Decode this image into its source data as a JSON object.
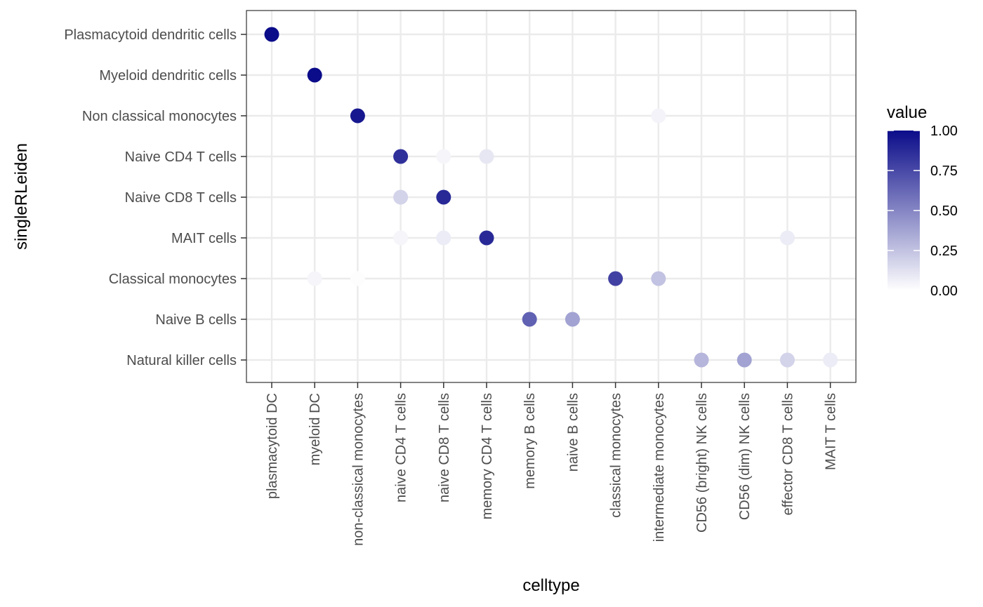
{
  "chart_data": {
    "type": "scatter",
    "xlabel": "celltype",
    "ylabel": "singleRLeiden",
    "x_categories": [
      "plasmacytoid DC",
      "myeloid DC",
      "non-classical monocytes",
      "naive CD4 T cells",
      "naive CD8 T cells",
      "memory CD4 T cells",
      "memory B cells",
      "naive B cells",
      "classical monocytes",
      "intermediate monocytes",
      "CD56 (bright) NK cells",
      "CD56 (dim) NK cells",
      "effector CD8 T cells",
      "MAIT T cells"
    ],
    "y_categories": [
      "Plasmacytoid dendritic cells",
      "Myeloid dendritic cells",
      "Non classical monocytes",
      "Naive CD4 T cells",
      "Naive CD8 T cells",
      "MAIT cells",
      "Classical monocytes",
      "Naive B cells",
      "Natural killer cells"
    ],
    "points": [
      {
        "x": "plasmacytoid DC",
        "y": "Plasmacytoid dendritic cells",
        "value": 1.0
      },
      {
        "x": "myeloid DC",
        "y": "Myeloid dendritic cells",
        "value": 1.0
      },
      {
        "x": "non-classical monocytes",
        "y": "Non classical monocytes",
        "value": 0.95
      },
      {
        "x": "intermediate monocytes",
        "y": "Non classical monocytes",
        "value": 0.05
      },
      {
        "x": "naive CD4 T cells",
        "y": "Naive CD4 T cells",
        "value": 0.85
      },
      {
        "x": "naive CD8 T cells",
        "y": "Naive CD4 T cells",
        "value": 0.04
      },
      {
        "x": "memory CD4 T cells",
        "y": "Naive CD4 T cells",
        "value": 0.1
      },
      {
        "x": "naive CD4 T cells",
        "y": "Naive CD8 T cells",
        "value": 0.18
      },
      {
        "x": "naive CD8 T cells",
        "y": "Naive CD8 T cells",
        "value": 0.88
      },
      {
        "x": "naive CD4 T cells",
        "y": "MAIT cells",
        "value": 0.04
      },
      {
        "x": "naive CD8 T cells",
        "y": "MAIT cells",
        "value": 0.08
      },
      {
        "x": "memory CD4 T cells",
        "y": "MAIT cells",
        "value": 0.88
      },
      {
        "x": "effector CD8 T cells",
        "y": "MAIT cells",
        "value": 0.08
      },
      {
        "x": "myeloid DC",
        "y": "Classical monocytes",
        "value": 0.04
      },
      {
        "x": "non-classical monocytes",
        "y": "Classical monocytes",
        "value": 0.01
      },
      {
        "x": "classical monocytes",
        "y": "Classical monocytes",
        "value": 0.78
      },
      {
        "x": "intermediate monocytes",
        "y": "Classical monocytes",
        "value": 0.25
      },
      {
        "x": "memory B cells",
        "y": "Naive B cells",
        "value": 0.65
      },
      {
        "x": "naive B cells",
        "y": "Naive B cells",
        "value": 0.38
      },
      {
        "x": "CD56 (bright) NK cells",
        "y": "Natural killer cells",
        "value": 0.3
      },
      {
        "x": "CD56 (dim) NK cells",
        "y": "Natural killer cells",
        "value": 0.38
      },
      {
        "x": "effector CD8 T cells",
        "y": "Natural killer cells",
        "value": 0.18
      },
      {
        "x": "MAIT T cells",
        "y": "Natural killer cells",
        "value": 0.08
      }
    ],
    "legend": {
      "title": "value",
      "position": "right",
      "ticks": [
        {
          "value": 0.0,
          "label": "0.00"
        },
        {
          "value": 0.25,
          "label": "0.25"
        },
        {
          "value": 0.5,
          "label": "0.50"
        },
        {
          "value": 0.75,
          "label": "0.75"
        },
        {
          "value": 1.0,
          "label": "1.00"
        }
      ],
      "low_color": "#ffffff",
      "high_color": "#0b0c89"
    },
    "grid": true,
    "colors": {
      "panel_border": "#333333",
      "grid_major": "#ebebeb",
      "tick_text": "#4d4d4d",
      "axis_title": "#000000"
    }
  }
}
